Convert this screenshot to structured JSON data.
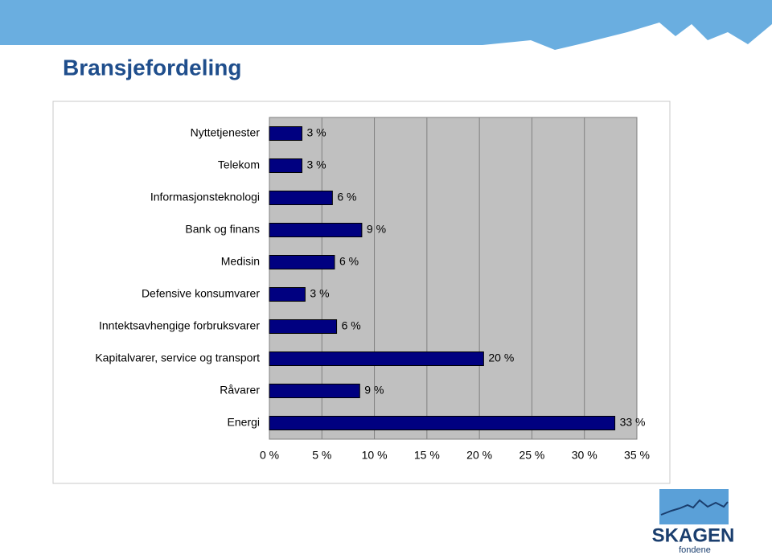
{
  "title": "Bransjefordeling",
  "chart_data": {
    "type": "barh",
    "categories": [
      "Nyttetjenester",
      "Telekom",
      "Informasjonsteknologi",
      "Bank og finans",
      "Medisin",
      "Defensive konsumvarer",
      "Inntektsavhengige forbruksvarer",
      "Kapitalvarer, service og transport",
      "Råvarer",
      "Energi"
    ],
    "values": [
      3.1,
      3.1,
      6.0,
      8.8,
      6.2,
      3.4,
      6.4,
      20.4,
      8.6,
      32.9
    ],
    "value_labels": [
      "3 %",
      "3 %",
      "6 %",
      "9 %",
      "6 %",
      "3 %",
      "6 %",
      "20 %",
      "9 %",
      "33 %"
    ],
    "color": "#000080",
    "xlim": [
      0,
      35
    ],
    "xticks": [
      {
        "value": 0,
        "label": "0 %"
      },
      {
        "value": 5,
        "label": "5 %"
      },
      {
        "value": 10,
        "label": "10 %"
      },
      {
        "value": 15,
        "label": "15 %"
      },
      {
        "value": 20,
        "label": "20 %"
      },
      {
        "value": 25,
        "label": "25 %"
      },
      {
        "value": 30,
        "label": "30 %"
      },
      {
        "value": 35,
        "label": "35 %"
      }
    ],
    "grid": true
  },
  "logo": {
    "name": "SKAGEN",
    "sub": "fondene"
  }
}
